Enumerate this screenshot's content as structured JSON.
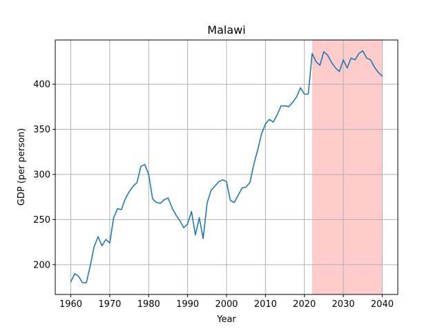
{
  "chart_data": {
    "type": "line",
    "title": "Malawi",
    "xlabel": "Year",
    "ylabel": "GDP (per person)",
    "xlim": [
      1956,
      2044
    ],
    "ylim": [
      167,
      449
    ],
    "xticks": [
      1960,
      1970,
      1980,
      1990,
      2000,
      2010,
      2020,
      2030,
      2040
    ],
    "yticks": [
      200,
      250,
      300,
      350,
      400
    ],
    "grid": true,
    "line_color": "#1f77b4",
    "shaded_region": {
      "x_start": 2022,
      "x_end": 2040,
      "color": "#ff0000",
      "opacity": 0.2
    },
    "series": [
      {
        "x": [
          1960,
          1961,
          1962,
          1963,
          1964,
          1965,
          1966,
          1967,
          1968,
          1969,
          1970,
          1971,
          1972,
          1973,
          1974,
          1975,
          1976,
          1977,
          1978,
          1979,
          1980,
          1981,
          1982,
          1983,
          1984,
          1985,
          1986,
          1987,
          1988,
          1989,
          1990,
          1991,
          1992,
          1993,
          1994,
          1995,
          1996,
          1997,
          1998,
          1999,
          2000,
          2001,
          2002,
          2003,
          2004,
          2005,
          2006,
          2007,
          2008,
          2009,
          2010,
          2011,
          2012,
          2013,
          2014,
          2015,
          2016,
          2017,
          2018,
          2019,
          2020,
          2021,
          2022,
          2023,
          2024,
          2025,
          2026,
          2027,
          2028,
          2029,
          2030,
          2031,
          2032,
          2033,
          2034,
          2035,
          2036,
          2037,
          2038,
          2039,
          2040
        ],
        "values": [
          181,
          190,
          187,
          180,
          180,
          199,
          220,
          231,
          221,
          228,
          224,
          252,
          262,
          261,
          273,
          281,
          287,
          291,
          309,
          311,
          300,
          273,
          269,
          268,
          272,
          274,
          263,
          255,
          249,
          241,
          245,
          259,
          233,
          252,
          229,
          268,
          282,
          287,
          292,
          294,
          292,
          271,
          269,
          277,
          285,
          286,
          291,
          311,
          327,
          345,
          356,
          361,
          358,
          366,
          376,
          376,
          375,
          380,
          386,
          396,
          389,
          389,
          434,
          425,
          421,
          436,
          432,
          424,
          418,
          414,
          427,
          418,
          429,
          427,
          434,
          437,
          429,
          427,
          419,
          413,
          409
        ]
      }
    ]
  }
}
